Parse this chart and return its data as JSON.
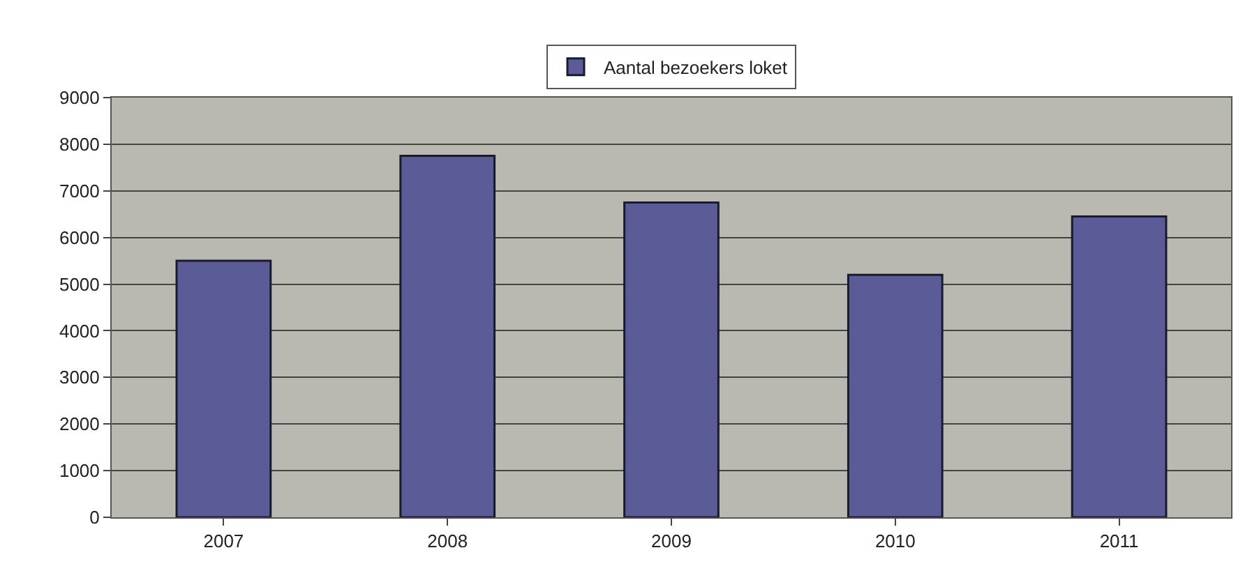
{
  "chart_data": {
    "type": "bar",
    "categories": [
      "2007",
      "2008",
      "2009",
      "2010",
      "2011"
    ],
    "series": [
      {
        "name": "Aantal bezoekers loket",
        "color": "#5b5b98",
        "values": [
          5500,
          7750,
          6750,
          5200,
          6450
        ]
      }
    ],
    "ylim": [
      0,
      9000
    ],
    "yticks": [
      0,
      1000,
      2000,
      3000,
      4000,
      5000,
      6000,
      7000,
      8000,
      9000
    ],
    "grid": "y",
    "legend": "top"
  }
}
